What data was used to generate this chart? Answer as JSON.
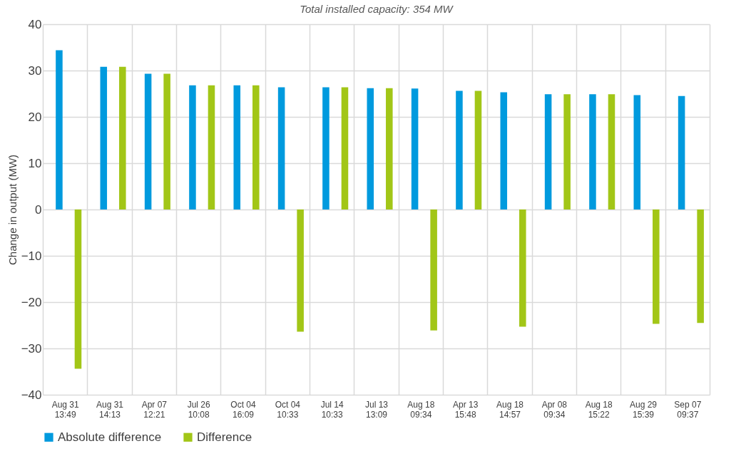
{
  "chart_data": {
    "type": "bar",
    "title": "Total installed capacity: 354 MW",
    "ylabel": "Change in output (MW)",
    "categories": [
      "Aug 31\n13:49",
      "Aug 31\n14:13",
      "Apr 07\n12:21",
      "Jul 26\n10:08",
      "Oct 04\n16:09",
      "Oct 04\n10:33",
      "Jul 14\n10:33",
      "Jul 13\n13:09",
      "Aug 18\n09:34",
      "Apr 13\n15:48",
      "Aug 18\n14:57",
      "Apr 08\n09:34",
      "Aug 18\n15:22",
      "Aug 29\n15:39",
      "Sep 07\n09:37"
    ],
    "series": [
      {
        "name": "Absolute difference",
        "color": "#009ade",
        "values": [
          34.4,
          30.8,
          29.3,
          26.8,
          26.8,
          26.4,
          26.4,
          26.2,
          26.1,
          25.6,
          25.3,
          24.9,
          24.9,
          24.7,
          24.5
        ]
      },
      {
        "name": "Difference",
        "color": "#a2c617",
        "values": [
          -34.4,
          30.8,
          29.3,
          26.8,
          26.8,
          -26.4,
          26.4,
          26.2,
          -26.1,
          25.6,
          -25.3,
          24.9,
          24.9,
          -24.7,
          -24.5
        ]
      }
    ],
    "ylim": [
      -40,
      40
    ],
    "yticks": [
      -40,
      -30,
      -20,
      -10,
      0,
      10,
      20,
      30,
      40
    ],
    "grid": true,
    "legend": "bottom"
  }
}
